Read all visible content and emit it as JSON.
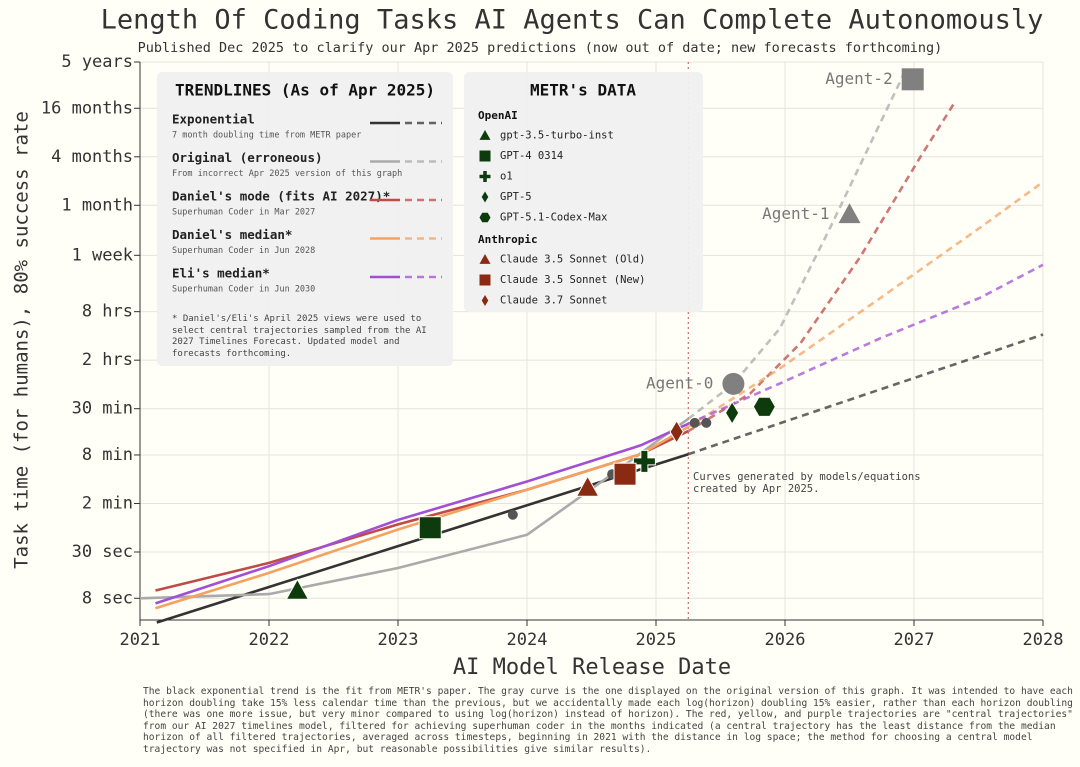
{
  "chart_data": {
    "type": "line",
    "title": "Length Of Coding Tasks AI Agents Can Complete Autonomously",
    "subtitle": "Published Dec 2025 to clarify our Apr 2025 predictions (now out of date; new forecasts forthcoming)",
    "xlabel": "AI Model Release Date",
    "ylabel": "Task time (for humans), 80% success rate",
    "xlim": [
      2021,
      2028
    ],
    "xticks": [
      2021,
      2022,
      2023,
      2024,
      2025,
      2026,
      2027,
      2028
    ],
    "log_y": true,
    "grid": true,
    "ylim": [
      4.3,
      36072000
    ],
    "yticks": [
      {
        "value": 8,
        "label": "8 sec"
      },
      {
        "value": 30,
        "label": "30 sec"
      },
      {
        "value": 120,
        "label": "2 min"
      },
      {
        "value": 480,
        "label": "8 min"
      },
      {
        "value": 1800,
        "label": "30 min"
      },
      {
        "value": 7200,
        "label": "2 hrs"
      },
      {
        "value": 28800,
        "label": "8 hrs"
      },
      {
        "value": 144000,
        "label": "1 week"
      },
      {
        "value": 601200,
        "label": "1 month"
      },
      {
        "value": 2404800,
        "label": "4 months"
      },
      {
        "value": 9619200,
        "label": "16 months"
      },
      {
        "value": 36072000,
        "label": "5 years"
      }
    ],
    "cutoff": {
      "x": 2025.25,
      "label": "Curves generated by models/equations created by Apr 2025.",
      "color": "#c0504d"
    },
    "trend_legend_title": "TRENDLINES (As of Apr 2025)",
    "legend_footnote": "* Daniel's/Eli's April 2025 views were used to select central trajectories sampled from the AI 2027 Timelines Forecast. Updated model and forecasts forthcoming.",
    "series": [
      {
        "name": "Exponential",
        "note": "7 month doubling time from METR paper",
        "color": "#333333",
        "x": [
          2021.13,
          2025.25,
          2028
        ],
        "values": [
          4,
          490,
          15000
        ]
      },
      {
        "name": "Original (erroneous)",
        "note": "From incorrect Apr 2025 version of this graph",
        "color": "#aaaaaa",
        "x": [
          2021,
          2022,
          2023,
          2024,
          2024.66,
          2025.03,
          2025.25,
          2025.6,
          2025.96,
          2026.35,
          2026.74,
          2026.93
        ],
        "values": [
          8,
          9,
          19,
          49,
          277,
          757,
          1350,
          3660,
          17800,
          316000,
          6400000,
          27500000
        ]
      },
      {
        "name": "Daniel's mode (fits AI 2027)*",
        "note": "Superhuman Coder in Mar 2027",
        "color": "#bf4a47",
        "x": [
          2021.12,
          2022,
          2023,
          2024,
          2024.88,
          2025.25,
          2025.73,
          2026.12,
          2026.58,
          2027.05,
          2027.32
        ],
        "values": [
          10,
          22,
          66,
          178,
          490,
          950,
          2780,
          11700,
          135000,
          2400000,
          11700000
        ]
      },
      {
        "name": "Daniel's median*",
        "note": "Superhuman Coder in Jun 2028",
        "color": "#f4a261",
        "x": [
          2021.12,
          2022,
          2023,
          2024,
          2024.88,
          2025.25,
          2025.96,
          2026.74,
          2027.51,
          2028
        ],
        "values": [
          6,
          16.5,
          57,
          178,
          490,
          1070,
          5660,
          42700,
          316000,
          1170000
        ]
      },
      {
        "name": "Eli's median*",
        "note": "Superhuman Coder in Jun 2030",
        "color": "#a24fd6",
        "x": [
          2021.12,
          2022,
          2023,
          2024,
          2024.88,
          2025.25,
          2025.96,
          2026.74,
          2027.51,
          2028
        ],
        "values": [
          6.9,
          20,
          75,
          225,
          630,
          1170,
          3700,
          13500,
          42700,
          110000
        ]
      }
    ],
    "data_legend_title": "METR's DATA",
    "groups": [
      {
        "name": "OpenAI",
        "color": "#0d3b0d",
        "points": [
          {
            "name": "gpt-3.5-turbo-inst",
            "marker": "triangle",
            "x": 2022.22,
            "value": 10
          },
          {
            "name": "GPT-4 0314",
            "marker": "square",
            "x": 2023.25,
            "value": 60
          },
          {
            "name": "o1",
            "marker": "plus",
            "x": 2024.91,
            "value": 400
          },
          {
            "name": "GPT-5",
            "marker": "diamond",
            "x": 2025.59,
            "value": 1600
          },
          {
            "name": "GPT-5.1-Codex-Max",
            "marker": "hexagon",
            "x": 2025.84,
            "value": 1900
          }
        ]
      },
      {
        "name": "Anthropic",
        "color": "#8a2a12",
        "points": [
          {
            "name": "Claude 3.5 Sonnet (Old)",
            "marker": "triangle",
            "x": 2024.47,
            "value": 190
          },
          {
            "name": "Claude 3.5 Sonnet (New)",
            "marker": "square",
            "x": 2024.76,
            "value": 277
          },
          {
            "name": "Claude 3.7 Sonnet",
            "marker": "diamond",
            "x": 2025.16,
            "value": 930
          }
        ]
      }
    ],
    "extra_points": {
      "color": "#555555",
      "x": [
        2023.89,
        2024.66,
        2025.3,
        2025.39
      ],
      "values": [
        87,
        277,
        1200,
        1200
      ]
    },
    "agents": {
      "color": "#808080",
      "points": [
        {
          "name": "Agent-0",
          "marker": "circle",
          "x": 2025.6,
          "value": 3660
        },
        {
          "name": "Agent-1",
          "marker": "triangle",
          "x": 2026.5,
          "value": 465000
        },
        {
          "name": "Agent-2",
          "marker": "square",
          "x": 2026.99,
          "value": 22000000
        }
      ]
    },
    "footnote": "The black exponential trend is the fit from METR's paper. The gray curve is the one displayed on the original version of this graph. It was intended to have each horizon doubling take 15% less calendar time than the previous, but we accidentally made each log(horizon) doubling 15% easier, rather than each horizon doubling (there was one more issue, but very minor compared to using log(horizon) instead of horizon). The red, yellow, and purple trajectories are \"central trajectories\" from our AI 2027 timelines model, filtered for achieving superhuman coder in the months indicated (a central trajectory has the least distance from the median horizon of all filtered trajectories, averaged across timesteps, beginning in 2021 with the distance in log space; the method for choosing a central model trajectory was not specified in Apr, but reasonable possibilities give similar results)."
  }
}
